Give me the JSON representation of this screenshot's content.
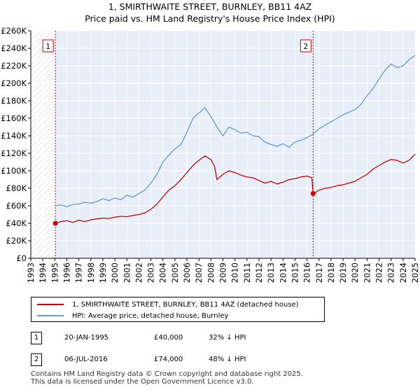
{
  "chart_data": {
    "type": "line",
    "title": "1, SMIRTHWAITE STREET, BURNLEY, BB11 4AZ",
    "subtitle": "Price paid vs. HM Land Registry's House Price Index (HPI)",
    "xlim": [
      1993,
      2025
    ],
    "ylim": [
      0,
      260000
    ],
    "x_ticks": [
      1993,
      1994,
      1995,
      1996,
      1997,
      1998,
      1999,
      2000,
      2001,
      2002,
      2003,
      2004,
      2005,
      2006,
      2007,
      2008,
      2009,
      2010,
      2011,
      2012,
      2013,
      2014,
      2015,
      2016,
      2017,
      2018,
      2019,
      2020,
      2021,
      2022,
      2023,
      2024,
      2025
    ],
    "y_ticks": [
      0,
      20000,
      40000,
      60000,
      80000,
      100000,
      120000,
      140000,
      160000,
      180000,
      200000,
      220000,
      240000,
      260000
    ],
    "y_tick_labels": [
      "£0",
      "£20K",
      "£40K",
      "£60K",
      "£80K",
      "£100K",
      "£120K",
      "£140K",
      "£160K",
      "£180K",
      "£200K",
      "£220K",
      "£240K",
      "£260K"
    ],
    "pre_purchase_hatch_until": 1995.05,
    "series": [
      {
        "name": "1, SMIRTHWAITE STREET, BURNLEY, BB11 4AZ (detached house)",
        "color": "#cc0000",
        "points": [
          [
            1995.05,
            40000
          ],
          [
            1995.5,
            42000
          ],
          [
            1996.0,
            43000
          ],
          [
            1996.5,
            41000
          ],
          [
            1997.0,
            43500
          ],
          [
            1997.5,
            42000
          ],
          [
            1998.0,
            44000
          ],
          [
            1998.5,
            45000
          ],
          [
            1999.0,
            46000
          ],
          [
            1999.5,
            45500
          ],
          [
            2000.0,
            47000
          ],
          [
            2000.5,
            48000
          ],
          [
            2001.0,
            47500
          ],
          [
            2001.5,
            49000
          ],
          [
            2002.0,
            50000
          ],
          [
            2002.5,
            52000
          ],
          [
            2003.0,
            56000
          ],
          [
            2003.5,
            62000
          ],
          [
            2004.0,
            70000
          ],
          [
            2004.5,
            78000
          ],
          [
            2005.0,
            83000
          ],
          [
            2005.5,
            90000
          ],
          [
            2006.0,
            98000
          ],
          [
            2006.5,
            106000
          ],
          [
            2007.0,
            112000
          ],
          [
            2007.5,
            117000
          ],
          [
            2008.0,
            113000
          ],
          [
            2008.3,
            105000
          ],
          [
            2008.5,
            90000
          ],
          [
            2009.0,
            96000
          ],
          [
            2009.5,
            100000
          ],
          [
            2010.0,
            98000
          ],
          [
            2010.5,
            95000
          ],
          [
            2011.0,
            93000
          ],
          [
            2011.5,
            92000
          ],
          [
            2012.0,
            89000
          ],
          [
            2012.5,
            86000
          ],
          [
            2013.0,
            88000
          ],
          [
            2013.5,
            85000
          ],
          [
            2014.0,
            87000
          ],
          [
            2014.5,
            90000
          ],
          [
            2015.0,
            91000
          ],
          [
            2015.5,
            93000
          ],
          [
            2016.0,
            94000
          ],
          [
            2016.4,
            92000
          ],
          [
            2016.51,
            74000
          ],
          [
            2016.8,
            76000
          ],
          [
            2017.0,
            78000
          ],
          [
            2017.5,
            80000
          ],
          [
            2018.0,
            81000
          ],
          [
            2018.5,
            83000
          ],
          [
            2019.0,
            84000
          ],
          [
            2019.5,
            86000
          ],
          [
            2020.0,
            88000
          ],
          [
            2020.5,
            92000
          ],
          [
            2021.0,
            96000
          ],
          [
            2021.5,
            102000
          ],
          [
            2022.0,
            106000
          ],
          [
            2022.5,
            110000
          ],
          [
            2023.0,
            113000
          ],
          [
            2023.5,
            112000
          ],
          [
            2024.0,
            109000
          ],
          [
            2024.5,
            112000
          ],
          [
            2025.0,
            119000
          ]
        ]
      },
      {
        "name": "HPI: Average price, detached house, Burnley",
        "color": "#6699cc",
        "points": [
          [
            1995.0,
            60000
          ],
          [
            1995.5,
            61000
          ],
          [
            1996.0,
            59000
          ],
          [
            1996.5,
            61500
          ],
          [
            1997.0,
            62000
          ],
          [
            1997.5,
            64000
          ],
          [
            1998.0,
            63000
          ],
          [
            1998.5,
            65000
          ],
          [
            1999.0,
            68000
          ],
          [
            1999.5,
            66000
          ],
          [
            2000.0,
            69000
          ],
          [
            2000.5,
            67000
          ],
          [
            2001.0,
            72000
          ],
          [
            2001.5,
            70000
          ],
          [
            2002.0,
            74000
          ],
          [
            2002.5,
            78000
          ],
          [
            2003.0,
            86000
          ],
          [
            2003.5,
            96000
          ],
          [
            2004.0,
            110000
          ],
          [
            2004.5,
            118000
          ],
          [
            2005.0,
            125000
          ],
          [
            2005.5,
            130000
          ],
          [
            2006.0,
            144000
          ],
          [
            2006.5,
            160000
          ],
          [
            2007.0,
            166000
          ],
          [
            2007.5,
            172000
          ],
          [
            2008.0,
            162000
          ],
          [
            2008.5,
            150000
          ],
          [
            2009.0,
            140000
          ],
          [
            2009.5,
            150000
          ],
          [
            2010.0,
            147000
          ],
          [
            2010.5,
            143000
          ],
          [
            2011.0,
            144000
          ],
          [
            2011.5,
            140000
          ],
          [
            2012.0,
            139000
          ],
          [
            2012.5,
            133000
          ],
          [
            2013.0,
            130000
          ],
          [
            2013.5,
            128000
          ],
          [
            2014.0,
            131000
          ],
          [
            2014.5,
            127000
          ],
          [
            2015.0,
            133000
          ],
          [
            2015.5,
            135000
          ],
          [
            2016.0,
            138000
          ],
          [
            2016.5,
            142000
          ],
          [
            2017.0,
            148000
          ],
          [
            2017.5,
            152000
          ],
          [
            2018.0,
            156000
          ],
          [
            2018.5,
            160000
          ],
          [
            2019.0,
            164000
          ],
          [
            2019.5,
            167000
          ],
          [
            2020.0,
            170000
          ],
          [
            2020.5,
            176000
          ],
          [
            2021.0,
            186000
          ],
          [
            2021.5,
            194000
          ],
          [
            2022.0,
            205000
          ],
          [
            2022.5,
            215000
          ],
          [
            2023.0,
            222000
          ],
          [
            2023.5,
            218000
          ],
          [
            2024.0,
            220000
          ],
          [
            2024.5,
            227000
          ],
          [
            2025.0,
            232000
          ]
        ]
      }
    ],
    "markers": [
      {
        "label": "1",
        "x": 1995.05,
        "y": 40000,
        "color": "#cc0000"
      },
      {
        "label": "2",
        "x": 2016.51,
        "y": 74000,
        "color": "#cc0000"
      }
    ]
  },
  "legend": {
    "items": [
      {
        "label": "1, SMIRTHWAITE STREET, BURNLEY, BB11 4AZ (detached house)",
        "color": "#cc0000"
      },
      {
        "label": "HPI: Average price, detached house, Burnley",
        "color": "#6699cc"
      }
    ]
  },
  "sales": [
    {
      "num": "1",
      "date": "20-JAN-1995",
      "price": "£40,000",
      "hpi": "32% ↓ HPI"
    },
    {
      "num": "2",
      "date": "06-JUL-2016",
      "price": "£74,000",
      "hpi": "48% ↓ HPI"
    }
  ],
  "footer": {
    "line1": "Contains HM Land Registry data © Crown copyright and database right 2025.",
    "line2": "This data is licensed under the Open Government Licence v3.0."
  }
}
